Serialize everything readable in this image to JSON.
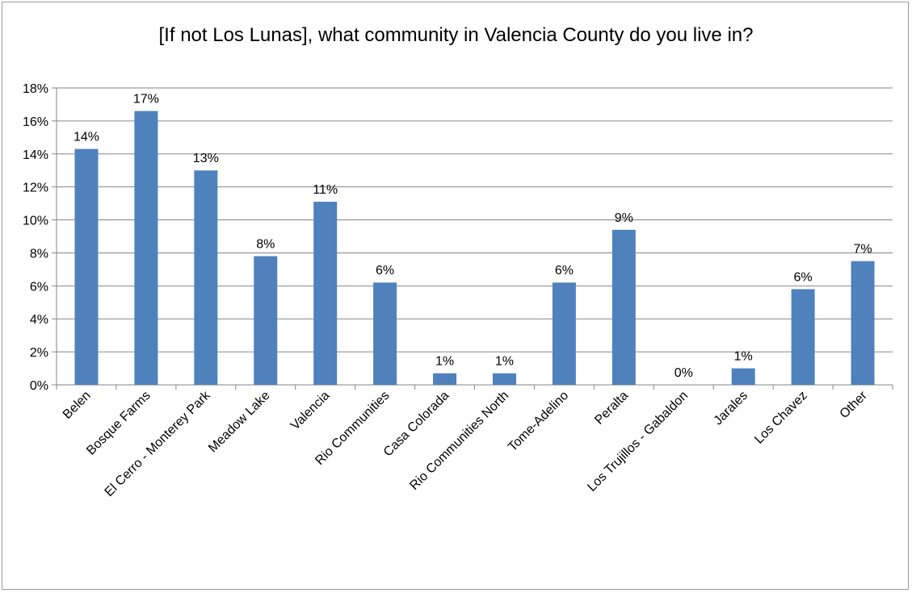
{
  "chart_data": {
    "type": "bar",
    "title": "[If not Los Lunas], what community in Valencia County do you live in?",
    "xlabel": "",
    "ylabel": "",
    "ylim": [
      0,
      0.18
    ],
    "yticks": [
      "0%",
      "2%",
      "4%",
      "6%",
      "8%",
      "10%",
      "12%",
      "14%",
      "16%",
      "18%"
    ],
    "grid": true,
    "legend": "none",
    "categories": [
      "Belen",
      "Bosque Farms",
      "El Cerro - Monterey Park",
      "Meadow Lake",
      "Valencia",
      "Rio Communities",
      "Casa Colorada",
      "Rio Communities North",
      "Tome-Adelino",
      "Peralta",
      "Los Trujillos - Gabaldon",
      "Jarales",
      "Los Chavez",
      "Other"
    ],
    "values": [
      0.143,
      0.166,
      0.13,
      0.078,
      0.111,
      0.062,
      0.007,
      0.007,
      0.062,
      0.094,
      0.0,
      0.01,
      0.058,
      0.075
    ],
    "data_labels": [
      "14%",
      "17%",
      "13%",
      "8%",
      "11%",
      "6%",
      "1%",
      "1%",
      "6%",
      "9%",
      "0%",
      "1%",
      "6%",
      "7%"
    ],
    "bar_color": "#4f81bd",
    "grid_color": "#868686"
  }
}
